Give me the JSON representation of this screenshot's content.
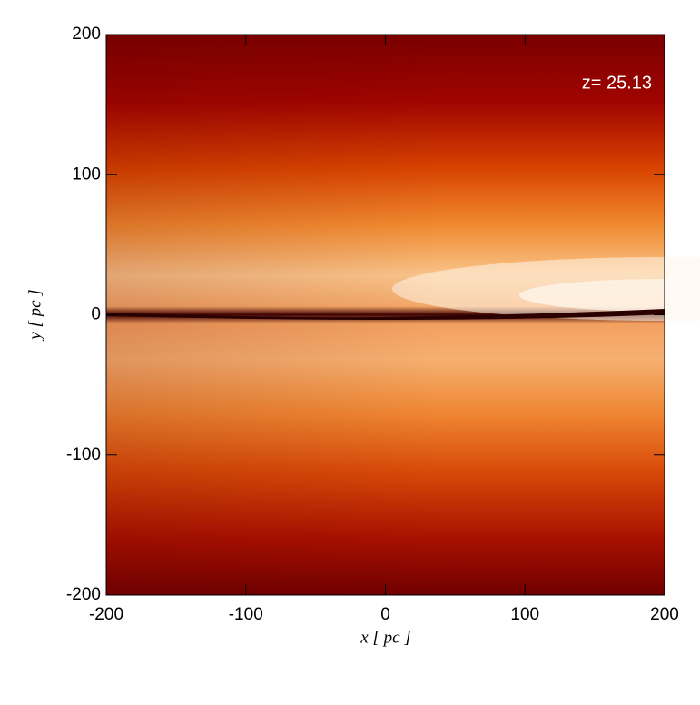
{
  "chart_data": {
    "type": "image",
    "annotation": "z= 25.13",
    "xlabel": "x [ pc ]",
    "ylabel": "y [ pc ]",
    "xlim": [
      -200,
      200
    ],
    "ylim": [
      -200,
      200
    ],
    "xticks": [
      -200,
      -100,
      0,
      100,
      200
    ],
    "yticks": [
      -200,
      -100,
      0,
      100,
      200
    ]
  }
}
